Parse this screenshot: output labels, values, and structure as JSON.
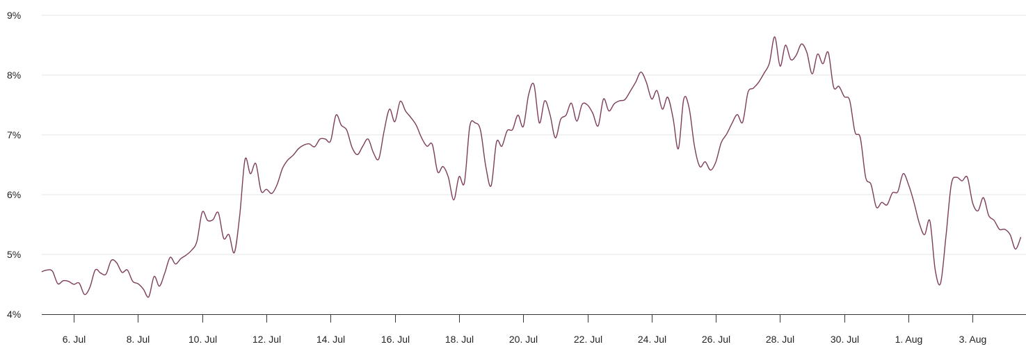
{
  "chart_data": {
    "type": "line",
    "title": "",
    "xlabel": "",
    "ylabel": "",
    "ylim": [
      4,
      9
    ],
    "y_ticks": [
      "4%",
      "5%",
      "6%",
      "7%",
      "8%",
      "9%"
    ],
    "y_tick_values": [
      4,
      5,
      6,
      7,
      8,
      9
    ],
    "x_ticks": [
      {
        "label": "6. Jul",
        "date": "Jul 6"
      },
      {
        "label": "8. Jul",
        "date": "Jul 8"
      },
      {
        "label": "10. Jul",
        "date": "Jul 10"
      },
      {
        "label": "12. Jul",
        "date": "Jul 12"
      },
      {
        "label": "14. Jul",
        "date": "Jul 14"
      },
      {
        "label": "16. Jul",
        "date": "Jul 16"
      },
      {
        "label": "18. Jul",
        "date": "Jul 18"
      },
      {
        "label": "20. Jul",
        "date": "Jul 20"
      },
      {
        "label": "22. Jul",
        "date": "Jul 22"
      },
      {
        "label": "24. Jul",
        "date": "Jul 24"
      },
      {
        "label": "26. Jul",
        "date": "Jul 26"
      },
      {
        "label": "28. Jul",
        "date": "Jul 28"
      },
      {
        "label": "30. Jul",
        "date": "Jul 30"
      },
      {
        "label": "1. Aug",
        "date": "Aug 1"
      },
      {
        "label": "3. Aug",
        "date": "Aug 3"
      }
    ],
    "grid": "horizontal",
    "legend": "none",
    "line_color": "#7d3b5a",
    "grid_color": "#e6e6e6",
    "sample_hours": [
      0,
      4,
      8,
      12,
      16,
      20
    ],
    "series": [
      {
        "days": [
          {
            "date": "Jul 5",
            "values": [
              4.71,
              4.74,
              4.72,
              4.51,
              4.56,
              4.55
            ]
          },
          {
            "date": "Jul 6",
            "values": [
              4.5,
              4.52,
              4.33,
              4.45,
              4.74,
              4.69
            ]
          },
          {
            "date": "Jul 7",
            "values": [
              4.67,
              4.9,
              4.86,
              4.7,
              4.74,
              4.55
            ]
          },
          {
            "date": "Jul 8",
            "values": [
              4.51,
              4.42,
              4.29,
              4.63,
              4.47,
              4.69
            ]
          },
          {
            "date": "Jul 9",
            "values": [
              4.95,
              4.84,
              4.93,
              4.99,
              5.07,
              5.22
            ]
          },
          {
            "date": "Jul 10",
            "values": [
              5.71,
              5.57,
              5.58,
              5.7,
              5.27,
              5.33
            ]
          },
          {
            "date": "Jul 11",
            "values": [
              5.03,
              5.65,
              6.59,
              6.35,
              6.52,
              6.06
            ]
          },
          {
            "date": "Jul 12",
            "values": [
              6.09,
              6.02,
              6.17,
              6.44,
              6.58,
              6.66
            ]
          },
          {
            "date": "Jul 13",
            "values": [
              6.77,
              6.83,
              6.85,
              6.8,
              6.93,
              6.93
            ]
          },
          {
            "date": "Jul 14",
            "values": [
              6.9,
              7.33,
              7.16,
              7.08,
              6.79,
              6.67
            ]
          },
          {
            "date": "Jul 15",
            "values": [
              6.81,
              6.93,
              6.7,
              6.6,
              7.07,
              7.43
            ]
          },
          {
            "date": "Jul 16",
            "values": [
              7.22,
              7.56,
              7.4,
              7.29,
              7.16,
              6.95
            ]
          },
          {
            "date": "Jul 17",
            "values": [
              6.81,
              6.84,
              6.38,
              6.47,
              6.29,
              5.91
            ]
          },
          {
            "date": "Jul 18",
            "values": [
              6.3,
              6.2,
              7.14,
              7.2,
              7.08,
              6.47
            ]
          },
          {
            "date": "Jul 19",
            "values": [
              6.15,
              6.88,
              6.81,
              7.07,
              7.09,
              7.33
            ]
          },
          {
            "date": "Jul 20",
            "values": [
              7.14,
              7.67,
              7.84,
              7.2,
              7.57,
              7.34
            ]
          },
          {
            "date": "Jul 21",
            "values": [
              6.95,
              7.26,
              7.33,
              7.53,
              7.23,
              7.51
            ]
          },
          {
            "date": "Jul 22",
            "values": [
              7.5,
              7.36,
              7.15,
              7.6,
              7.4,
              7.52
            ]
          },
          {
            "date": "Jul 23",
            "values": [
              7.57,
              7.59,
              7.73,
              7.88,
              8.05,
              7.88
            ]
          },
          {
            "date": "Jul 24",
            "values": [
              7.6,
              7.74,
              7.43,
              7.63,
              7.28,
              6.77
            ]
          },
          {
            "date": "Jul 25",
            "values": [
              7.6,
              7.45,
              6.81,
              6.47,
              6.55,
              6.41
            ]
          },
          {
            "date": "Jul 26",
            "values": [
              6.55,
              6.87,
              7.01,
              7.19,
              7.34,
              7.21
            ]
          },
          {
            "date": "Jul 27",
            "values": [
              7.71,
              7.78,
              7.88,
              8.03,
              8.2,
              8.64
            ]
          },
          {
            "date": "Jul 28",
            "values": [
              8.15,
              8.5,
              8.26,
              8.33,
              8.52,
              8.38
            ]
          },
          {
            "date": "Jul 29",
            "values": [
              8.02,
              8.35,
              8.19,
              8.38,
              7.8,
              7.81
            ]
          },
          {
            "date": "Jul 30",
            "values": [
              7.64,
              7.58,
              7.05,
              6.95,
              6.29,
              6.17
            ]
          },
          {
            "date": "Jul 31",
            "values": [
              5.79,
              5.87,
              5.83,
              6.03,
              6.05,
              6.35
            ]
          },
          {
            "date": "Aug 1",
            "values": [
              6.17,
              5.88,
              5.53,
              5.33,
              5.56,
              4.74
            ]
          },
          {
            "date": "Aug 2",
            "values": [
              4.52,
              5.3,
              6.17,
              6.29,
              6.23,
              6.29
            ]
          },
          {
            "date": "Aug 3",
            "values": [
              5.86,
              5.73,
              5.95,
              5.65,
              5.57,
              5.42
            ]
          },
          {
            "date": "Aug 4",
            "values": [
              5.42,
              5.33,
              5.09,
              5.29
            ]
          }
        ]
      }
    ]
  }
}
